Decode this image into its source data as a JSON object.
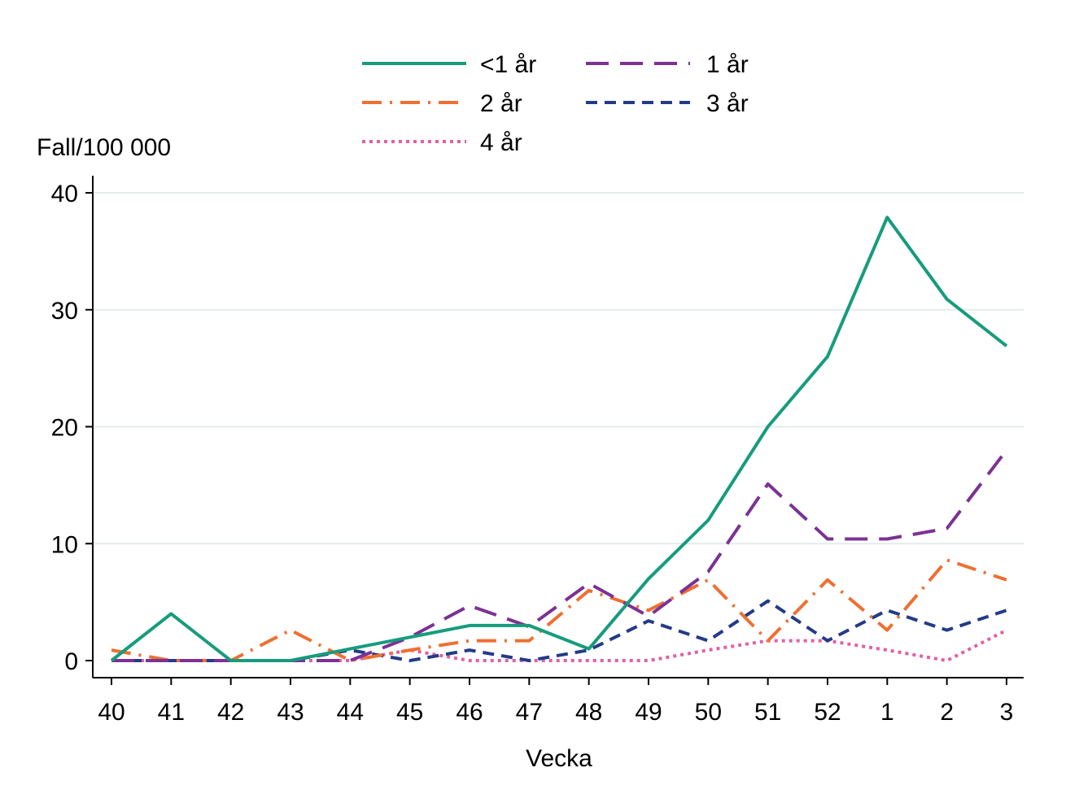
{
  "chart_data": {
    "type": "line",
    "title": "",
    "ylabel": "Fall/100 000",
    "xlabel": "Vecka",
    "categories": [
      "40",
      "41",
      "42",
      "43",
      "44",
      "45",
      "46",
      "47",
      "48",
      "49",
      "50",
      "51",
      "52",
      "1",
      "2",
      "3"
    ],
    "ylim": [
      0,
      40
    ],
    "yticks": [
      0,
      10,
      20,
      30,
      40
    ],
    "grid": true,
    "legend_position": "top",
    "series": [
      {
        "name": "<1 år",
        "color": "#169C7C",
        "dash": "solid",
        "values": [
          0,
          4,
          0,
          0,
          1,
          2,
          3,
          3,
          1,
          7,
          12,
          20,
          26,
          37.9,
          30.9,
          26.9
        ]
      },
      {
        "name": "1 år",
        "color": "#7B3294",
        "dash": "longdash",
        "values": [
          0,
          0,
          0,
          0,
          0,
          2,
          4.7,
          2.9,
          6.6,
          3.8,
          7.6,
          15.1,
          10.4,
          10.4,
          11.3,
          18
        ]
      },
      {
        "name": "2 år",
        "color": "#EE7031",
        "dash": "dashdot",
        "values": [
          0.9,
          0,
          0,
          2.6,
          0,
          0.9,
          1.7,
          1.7,
          6,
          4.3,
          6.9,
          1.7,
          6.9,
          2.6,
          8.6,
          6.9
        ]
      },
      {
        "name": "3 år",
        "color": "#233B88",
        "dash": "shortdash",
        "values": [
          0,
          0,
          0,
          0,
          0.9,
          0,
          0.9,
          0,
          0.9,
          3.4,
          1.7,
          5.1,
          1.7,
          4.3,
          2.6,
          4.3
        ]
      },
      {
        "name": "4 år",
        "color": "#E060A8",
        "dash": "dot",
        "values": [
          0,
          0,
          0,
          0,
          0,
          0.9,
          0,
          0,
          0,
          0,
          0.9,
          1.7,
          1.7,
          0.9,
          0,
          2.6
        ]
      }
    ]
  }
}
